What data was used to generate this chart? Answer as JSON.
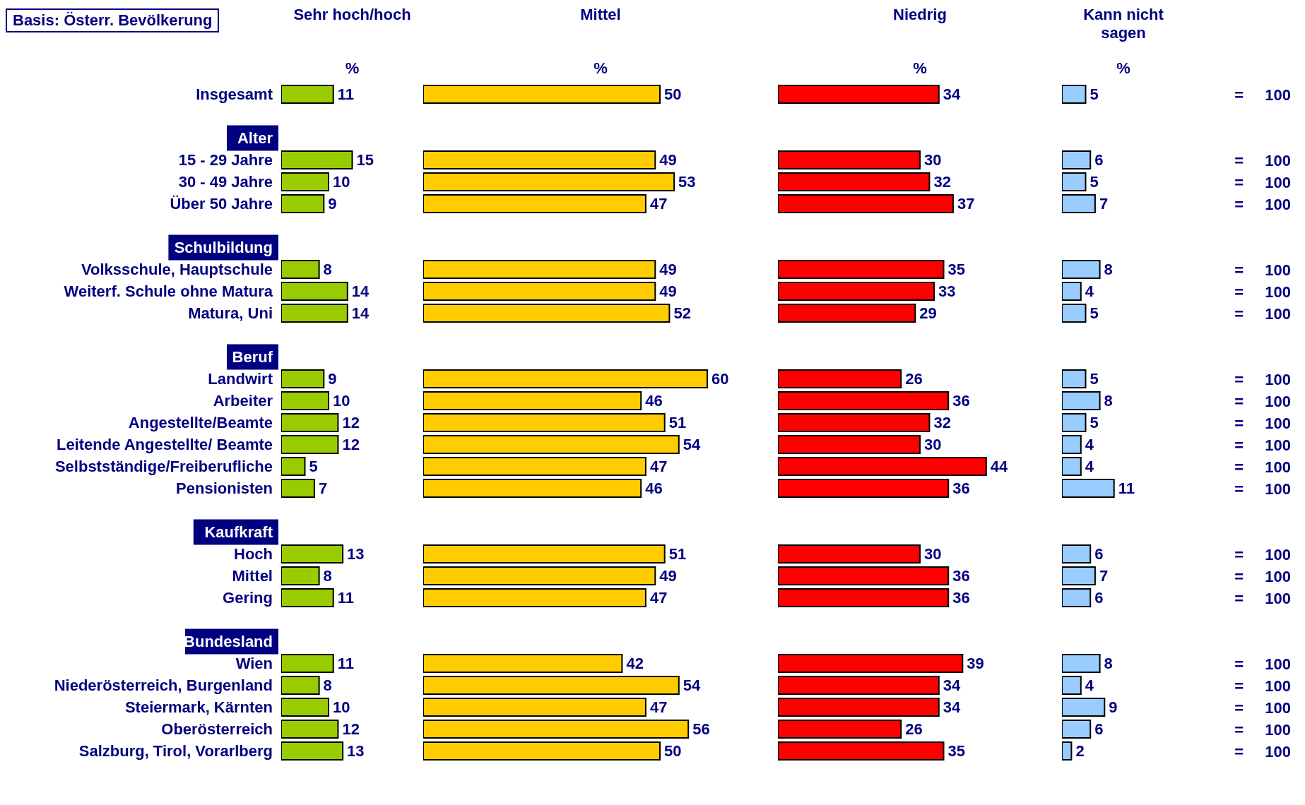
{
  "chart_data": [
    {
      "type": "bar",
      "orientation": "horizontal",
      "title": "Sehr hoch/hoch",
      "subtitle": "%",
      "annotations": [
        "Basis: Österr. Bevölkerung"
      ],
      "tick_labels": "y",
      "data_labels": true,
      "color": "#99cc00",
      "categories": [
        "Insgesamt",
        null,
        "Alter",
        "15 - 29 Jahre",
        "30 - 49 Jahre",
        "Über 50 Jahre",
        null,
        "Schulbildung",
        "Volksschule, Hauptschule",
        "Weiterf. Schule ohne Matura",
        "Matura, Uni",
        null,
        "Beruf",
        "Landwirt",
        "Arbeiter",
        "Angestellte/Beamte",
        "Leitende Angestellte/ Beamte",
        "Selbstständige/Freiberufliche",
        "Pensionisten",
        null,
        "Kaufkraft",
        "Hoch",
        "Mittel",
        "Gering",
        null,
        "Bundesland",
        "Wien",
        "Niederösterreich, Burgenland",
        "Steiermark, Kärnten",
        "Oberösterreich",
        "Salzburg, Tirol, Vorarlberg"
      ],
      "values": [
        11,
        null,
        null,
        15,
        10,
        9,
        null,
        null,
        8,
        14,
        14,
        null,
        null,
        9,
        10,
        12,
        12,
        5,
        7,
        null,
        null,
        13,
        8,
        11,
        null,
        null,
        11,
        8,
        10,
        12,
        13
      ]
    },
    {
      "type": "bar",
      "orientation": "horizontal",
      "title": "Mittel",
      "subtitle": "%",
      "tick_labels": false,
      "data_labels": true,
      "color": "#ffcc00",
      "values": [
        50,
        null,
        null,
        49,
        53,
        47,
        null,
        null,
        49,
        49,
        52,
        null,
        null,
        60,
        46,
        51,
        54,
        47,
        46,
        null,
        null,
        51,
        49,
        47,
        null,
        null,
        42,
        54,
        47,
        56,
        50
      ]
    },
    {
      "type": "bar",
      "orientation": "horizontal",
      "title": "Niedrig",
      "subtitle": "%",
      "tick_labels": false,
      "data_labels": true,
      "color": "#ff0000",
      "values": [
        34,
        null,
        null,
        30,
        32,
        37,
        null,
        null,
        35,
        33,
        29,
        null,
        null,
        26,
        36,
        32,
        30,
        44,
        36,
        null,
        null,
        30,
        36,
        36,
        null,
        null,
        39,
        34,
        34,
        26,
        35
      ]
    },
    {
      "type": "bar",
      "orientation": "horizontal",
      "title": "Kann nicht sagen",
      "subtitle": "%",
      "tick_labels": false,
      "data_labels": true,
      "color": "#99ccff",
      "values": [
        5,
        null,
        null,
        6,
        5,
        7,
        null,
        null,
        8,
        4,
        5,
        null,
        null,
        5,
        8,
        5,
        4,
        4,
        11,
        null,
        null,
        6,
        7,
        6,
        null,
        null,
        8,
        4,
        9,
        6,
        2
      ]
    },
    {
      "type": "other",
      "annotations": [
        "= 100",
        "= 100",
        "= 100",
        "= 100",
        "= 100",
        "= 100",
        "= 100",
        "= 100",
        "= 100",
        "= 100",
        "= 100",
        "= 100",
        "= 100",
        "= 100",
        "= 100",
        "= 100",
        "= 100",
        "= 100",
        "= 100",
        "= 100",
        "= 100"
      ]
    }
  ]
}
